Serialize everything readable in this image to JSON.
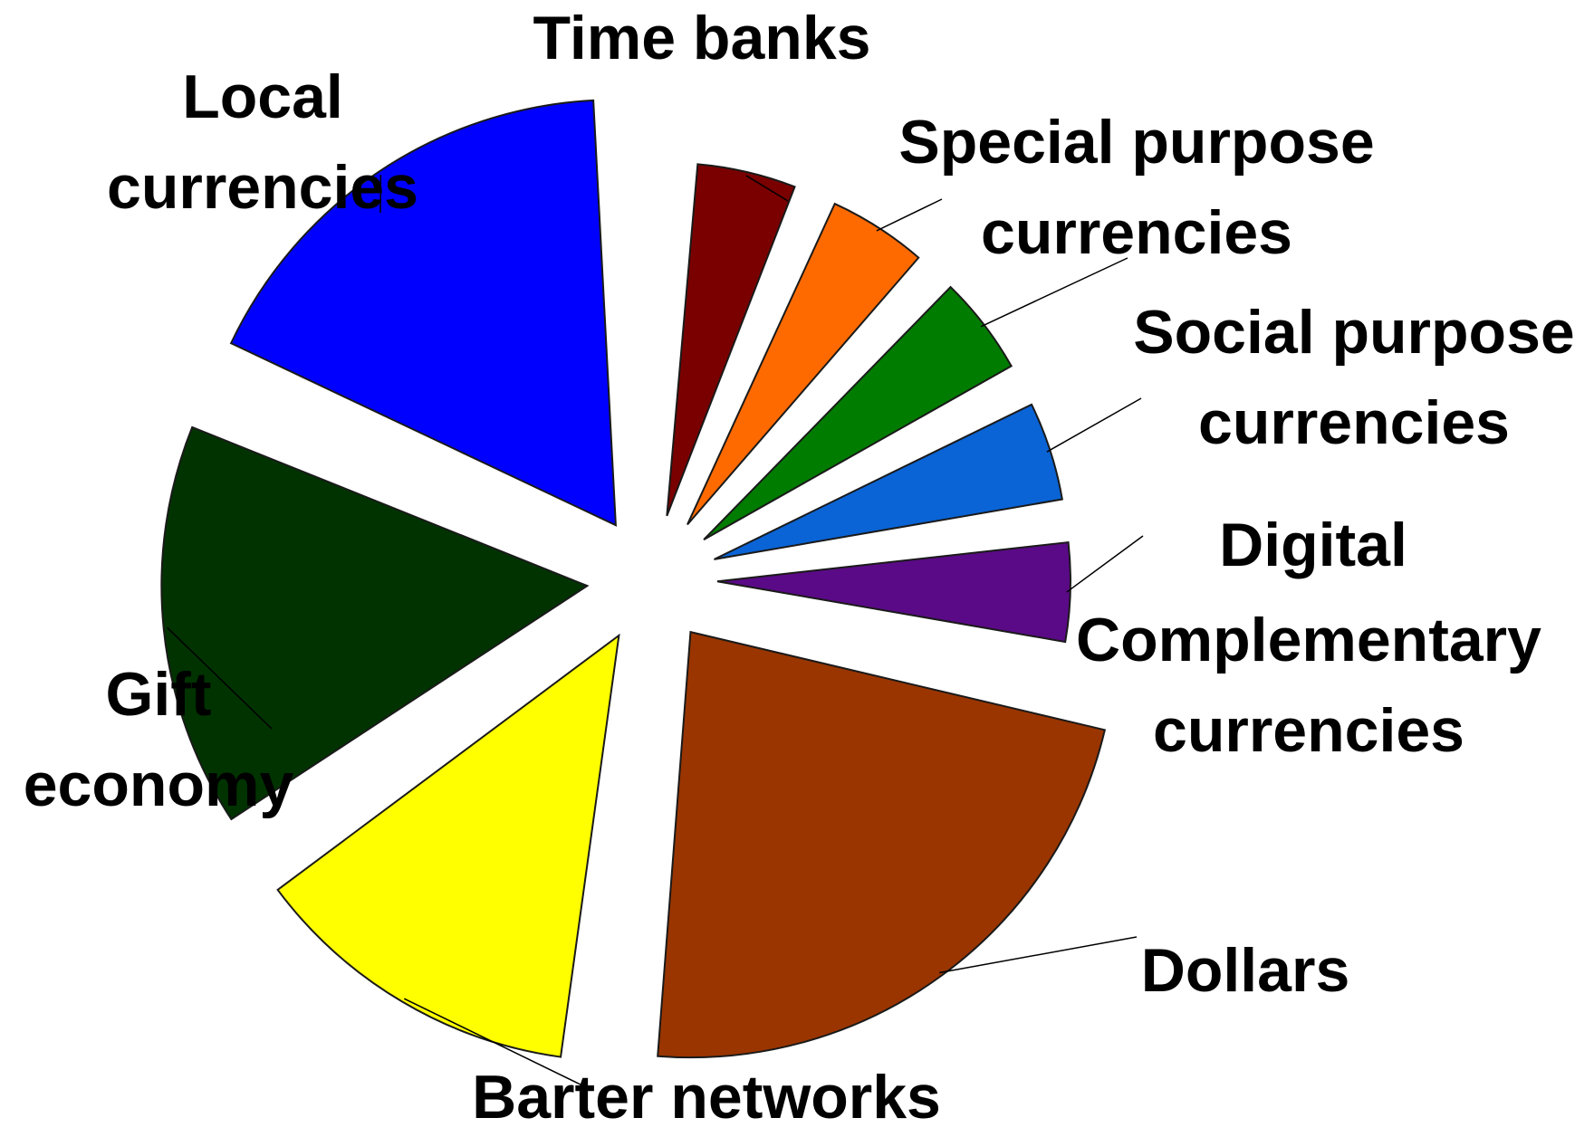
{
  "chart_data": {
    "type": "pie",
    "exploded": true,
    "slices": [
      {
        "label_lines": [
          "Time banks"
        ],
        "value": 5,
        "color": "#7a0000"
      },
      {
        "label_lines": [
          "Special purpose",
          "currencies"
        ],
        "value": 5,
        "color": "#ff6a00"
      },
      {
        "label_lines": [
          "Social purpose",
          "currencies"
        ],
        "value": 5,
        "color": "#007c00"
      },
      {
        "label_lines": [
          "Digital"
        ],
        "value": 5,
        "color": "#0a64d6"
      },
      {
        "label_lines": [
          "Complementary",
          "currencies"
        ],
        "value": 5,
        "color": "#5a0a86"
      },
      {
        "label_lines": [
          "Dollars"
        ],
        "value": 25,
        "color": "#9a3500"
      },
      {
        "label_lines": [
          "Barter networks"
        ],
        "value": 14,
        "color": "#ffff00"
      },
      {
        "label_lines": [
          "Gift",
          "economy"
        ],
        "value": 17,
        "color": "#003300"
      },
      {
        "label_lines": [
          "Local",
          "currencies"
        ],
        "value": 19,
        "color": "#0000ff"
      }
    ]
  }
}
